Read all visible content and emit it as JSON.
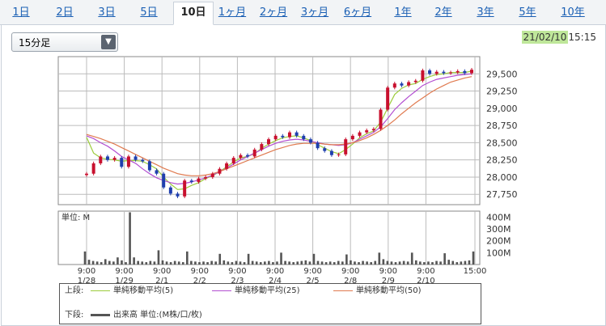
{
  "tabs": [
    {
      "label": "1日",
      "active": false
    },
    {
      "label": "2日",
      "active": false
    },
    {
      "label": "3日",
      "active": false
    },
    {
      "label": "5日",
      "active": false
    },
    {
      "label": "10日",
      "active": true
    },
    {
      "label": "1ヶ月",
      "active": false
    },
    {
      "label": "2ヶ月",
      "active": false
    },
    {
      "label": "3ヶ月",
      "active": false
    },
    {
      "label": "6ヶ月",
      "active": false
    },
    {
      "label": "1年",
      "active": false
    },
    {
      "label": "2年",
      "active": false
    },
    {
      "label": "3年",
      "active": false
    },
    {
      "label": "5年",
      "active": false
    },
    {
      "label": "10年",
      "active": false
    }
  ],
  "interval_select": {
    "value": "15分足"
  },
  "timestamp": {
    "date": "21/02/10",
    "time": "15:15"
  },
  "colors": {
    "ma5": "#9ccc3c",
    "ma25": "#b34fd1",
    "ma50": "#e07a4f",
    "up": "#c8102e",
    "down": "#1f3fae",
    "volume": "#555555",
    "grid": "#bbbbbb"
  },
  "chart_data": [
    {
      "type": "line",
      "title": "",
      "x_day_labels": [
        {
          "time": "9:00",
          "date": "1/28"
        },
        {
          "time": "9:00",
          "date": "1/29"
        },
        {
          "time": "9:00",
          "date": "2/1"
        },
        {
          "time": "9:00",
          "date": "2/2"
        },
        {
          "time": "9:00",
          "date": "2/3"
        },
        {
          "time": "9:00",
          "date": "2/4"
        },
        {
          "time": "9:00",
          "date": "2/5"
        },
        {
          "time": "9:00",
          "date": "2/8"
        },
        {
          "time": "9:00",
          "date": "2/9"
        },
        {
          "time": "9:00",
          "date": "2/10"
        },
        {
          "time": "15:00",
          "date": ""
        }
      ],
      "y_ticks": [
        "29,500",
        "29,250",
        "29,000",
        "28,750",
        "28,500",
        "28,250",
        "28,000",
        "27,750"
      ],
      "ylim": [
        27600,
        29750
      ],
      "series": [
        {
          "key": "price",
          "values": [
            28050,
            28200,
            28300,
            28250,
            28280,
            28150,
            28300,
            28250,
            28230,
            28100,
            28050,
            27850,
            27760,
            27720,
            27950,
            27930,
            27980,
            28000,
            28050,
            28120,
            28200,
            28280,
            28320,
            28300,
            28400,
            28480,
            28550,
            28600,
            28580,
            28650,
            28600,
            28550,
            28500,
            28420,
            28380,
            28320,
            28330,
            28550,
            28600,
            28650,
            28680,
            28700,
            28980,
            29300,
            29360,
            29330,
            29380,
            29400,
            29550,
            29500,
            29530,
            29510,
            29520,
            29540,
            29510,
            29560
          ]
        },
        {
          "key": "ma5",
          "values": [
            28580,
            28350,
            28280,
            28260,
            28250,
            28230,
            28240,
            28240,
            28230,
            28180,
            28120,
            28000,
            27900,
            27820,
            27830,
            27880,
            27920,
            27980,
            28020,
            28080,
            28150,
            28220,
            28280,
            28300,
            28340,
            28420,
            28480,
            28530,
            28570,
            28590,
            28600,
            28570,
            28530,
            28470,
            28420,
            28370,
            28340,
            28400,
            28480,
            28570,
            28630,
            28670,
            28800,
            29000,
            29200,
            29290,
            29340,
            29360,
            29420,
            29460,
            29490,
            29500,
            29520,
            29520,
            29520,
            29540
          ]
        },
        {
          "key": "ma25",
          "values": [
            28600,
            28560,
            28500,
            28450,
            28380,
            28300,
            28250,
            28200,
            28120,
            28050,
            27990,
            27950,
            27920,
            27900,
            27910,
            27930,
            27960,
            27990,
            28030,
            28080,
            28130,
            28190,
            28250,
            28300,
            28350,
            28400,
            28450,
            28490,
            28520,
            28540,
            28550,
            28540,
            28520,
            28500,
            28480,
            28470,
            28460,
            28470,
            28500,
            28550,
            28600,
            28650,
            28730,
            28850,
            28980,
            29080,
            29170,
            29250,
            29330,
            29380,
            29420,
            29440,
            29460,
            29480,
            29490,
            29500
          ]
        },
        {
          "key": "ma50",
          "values": [
            28620,
            28590,
            28560,
            28520,
            28480,
            28430,
            28380,
            28330,
            28280,
            28230,
            28180,
            28130,
            28090,
            28050,
            28030,
            28020,
            28020,
            28030,
            28050,
            28080,
            28120,
            28160,
            28200,
            28240,
            28280,
            28320,
            28360,
            28400,
            28430,
            28460,
            28480,
            28490,
            28490,
            28490,
            28480,
            28470,
            28470,
            28480,
            28500,
            28530,
            28570,
            28620,
            28680,
            28750,
            28830,
            28920,
            29000,
            29080,
            29150,
            29220,
            29280,
            29330,
            29380,
            29410,
            29440,
            29460
          ]
        }
      ],
      "legend": [
        {
          "label": "単純移動平均(5)",
          "color_key": "ma5"
        },
        {
          "label": "単純移動平均(25)",
          "color_key": "ma25"
        },
        {
          "label": "単純移動平均(50)",
          "color_key": "ma50"
        }
      ],
      "legend_row_label": "上段:"
    },
    {
      "type": "bar",
      "unit_label": "単位: M",
      "y_ticks": [
        "400M",
        "300M",
        "200M",
        "100M"
      ],
      "ylim": [
        0,
        450
      ],
      "values": [
        110,
        40,
        30,
        25,
        20,
        45,
        30,
        25,
        60,
        35,
        20,
        440,
        60,
        30,
        25,
        20,
        30,
        25,
        120,
        35,
        25,
        20,
        30,
        25,
        20,
        110,
        30,
        25,
        20,
        25,
        20,
        30,
        25,
        90,
        35,
        25,
        20,
        30,
        25,
        20,
        90,
        30,
        25,
        20,
        25,
        30,
        20,
        25,
        100,
        30,
        25,
        20,
        25,
        30,
        35,
        25,
        90,
        30,
        25,
        20,
        25,
        20,
        30,
        25,
        85,
        35,
        25,
        20,
        30,
        25,
        20,
        30,
        100,
        45,
        30,
        25,
        20,
        25,
        30,
        25,
        100,
        35,
        25,
        20,
        25,
        20,
        30,
        25,
        95,
        40,
        30,
        20,
        25,
        30,
        35,
        110
      ],
      "legend": [
        {
          "label": "出来高 単位:(M株/口/枚)",
          "color_key": "volume"
        }
      ],
      "legend_row_label": "下段:"
    }
  ]
}
